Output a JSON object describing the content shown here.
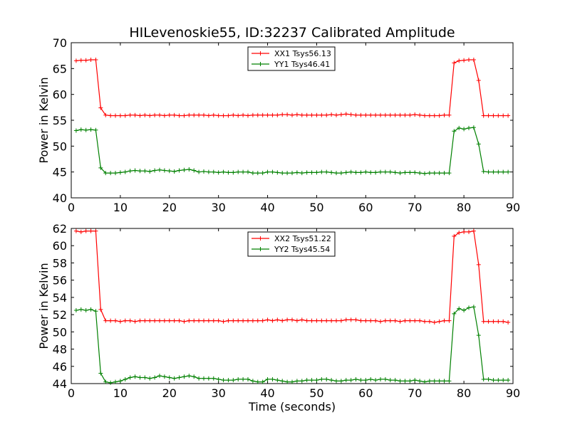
{
  "chart_data": [
    {
      "type": "line",
      "title": "HILevenoskie55, ID:32237 Calibrated Amplitude",
      "xlabel": "",
      "ylabel": "Power in Kelvin",
      "xlim": [
        0,
        90
      ],
      "ylim": [
        40,
        70
      ],
      "xticks": [
        0,
        10,
        20,
        30,
        40,
        50,
        60,
        70,
        80,
        90
      ],
      "yticks": [
        40,
        45,
        50,
        55,
        60,
        65,
        70
      ],
      "legend_position": "top-center",
      "x": [
        1,
        2,
        3,
        4,
        5,
        6,
        7,
        8,
        9,
        10,
        11,
        12,
        13,
        14,
        15,
        16,
        17,
        18,
        19,
        20,
        21,
        22,
        23,
        24,
        25,
        26,
        27,
        28,
        29,
        30,
        31,
        32,
        33,
        34,
        35,
        36,
        37,
        38,
        39,
        40,
        41,
        42,
        43,
        44,
        45,
        46,
        47,
        48,
        49,
        50,
        51,
        52,
        53,
        54,
        55,
        56,
        57,
        58,
        59,
        60,
        61,
        62,
        63,
        64,
        65,
        66,
        67,
        68,
        69,
        70,
        71,
        72,
        73,
        74,
        75,
        76,
        77,
        78,
        79,
        80,
        81,
        82,
        83,
        84,
        85,
        86,
        87,
        88,
        89
      ],
      "series": [
        {
          "name": "XX1 Tsys56.13",
          "color": "#ff0000",
          "values": [
            66.5,
            66.6,
            66.6,
            66.7,
            66.7,
            57.4,
            56.0,
            55.9,
            55.9,
            55.9,
            55.9,
            56.0,
            56.0,
            55.9,
            56.0,
            55.9,
            56.0,
            56.0,
            55.9,
            56.0,
            56.0,
            55.9,
            55.9,
            56.0,
            56.0,
            56.0,
            56.0,
            55.9,
            56.0,
            55.9,
            55.9,
            55.9,
            56.0,
            55.9,
            56.0,
            55.9,
            56.0,
            56.0,
            56.0,
            56.0,
            56.0,
            56.0,
            56.1,
            56.1,
            56.0,
            56.1,
            56.0,
            56.0,
            56.0,
            56.0,
            56.0,
            56.0,
            56.1,
            56.0,
            56.1,
            56.2,
            56.1,
            56.0,
            56.0,
            56.0,
            56.0,
            56.0,
            56.0,
            56.0,
            56.0,
            56.0,
            56.0,
            56.0,
            56.0,
            56.1,
            56.0,
            55.9,
            55.9,
            55.9,
            55.9,
            56.0,
            56.0,
            66.1,
            66.5,
            66.6,
            66.7,
            66.7,
            62.7,
            55.9,
            55.9,
            55.9,
            55.9,
            55.9,
            55.9
          ]
        },
        {
          "name": "YY1 Tsys46.41",
          "color": "#008000",
          "values": [
            53.0,
            53.2,
            53.1,
            53.2,
            53.1,
            45.8,
            44.8,
            44.8,
            44.8,
            44.9,
            45.0,
            45.2,
            45.3,
            45.2,
            45.2,
            45.1,
            45.3,
            45.4,
            45.3,
            45.2,
            45.1,
            45.3,
            45.4,
            45.5,
            45.3,
            45.0,
            45.1,
            45.0,
            45.0,
            44.9,
            45.0,
            44.9,
            44.9,
            45.0,
            45.0,
            45.0,
            44.8,
            44.8,
            44.8,
            45.0,
            45.0,
            44.9,
            44.8,
            44.8,
            44.8,
            44.9,
            44.8,
            44.9,
            44.9,
            44.9,
            45.0,
            45.0,
            44.9,
            44.8,
            44.8,
            44.9,
            45.0,
            44.9,
            44.9,
            45.0,
            44.9,
            44.9,
            45.0,
            45.0,
            45.0,
            44.9,
            44.8,
            44.9,
            44.9,
            44.9,
            44.8,
            44.7,
            44.8,
            44.8,
            44.8,
            44.8,
            44.8,
            52.9,
            53.5,
            53.3,
            53.5,
            53.6,
            50.4,
            45.1,
            45.0,
            45.0,
            45.0,
            45.0,
            45.0
          ]
        }
      ]
    },
    {
      "type": "line",
      "title": "",
      "xlabel": "Time (seconds)",
      "ylabel": "Power in Kelvin",
      "xlim": [
        0,
        90
      ],
      "ylim": [
        44,
        62
      ],
      "xticks": [
        0,
        10,
        20,
        30,
        40,
        50,
        60,
        70,
        80,
        90
      ],
      "yticks": [
        44,
        46,
        48,
        50,
        52,
        54,
        56,
        58,
        60,
        62
      ],
      "legend_position": "top-center",
      "x": [
        1,
        2,
        3,
        4,
        5,
        6,
        7,
        8,
        9,
        10,
        11,
        12,
        13,
        14,
        15,
        16,
        17,
        18,
        19,
        20,
        21,
        22,
        23,
        24,
        25,
        26,
        27,
        28,
        29,
        30,
        31,
        32,
        33,
        34,
        35,
        36,
        37,
        38,
        39,
        40,
        41,
        42,
        43,
        44,
        45,
        46,
        47,
        48,
        49,
        50,
        51,
        52,
        53,
        54,
        55,
        56,
        57,
        58,
        59,
        60,
        61,
        62,
        63,
        64,
        65,
        66,
        67,
        68,
        69,
        70,
        71,
        72,
        73,
        74,
        75,
        76,
        77,
        78,
        79,
        80,
        81,
        82,
        83,
        84,
        85,
        86,
        87,
        88,
        89
      ],
      "series": [
        {
          "name": "XX2 Tsys51.22",
          "color": "#ff0000",
          "values": [
            61.7,
            61.6,
            61.7,
            61.7,
            61.7,
            52.6,
            51.3,
            51.3,
            51.3,
            51.2,
            51.3,
            51.3,
            51.2,
            51.3,
            51.3,
            51.3,
            51.3,
            51.3,
            51.3,
            51.3,
            51.3,
            51.3,
            51.2,
            51.3,
            51.3,
            51.3,
            51.3,
            51.3,
            51.3,
            51.3,
            51.2,
            51.3,
            51.3,
            51.3,
            51.3,
            51.3,
            51.3,
            51.3,
            51.3,
            51.4,
            51.3,
            51.4,
            51.3,
            51.4,
            51.4,
            51.3,
            51.4,
            51.3,
            51.3,
            51.3,
            51.3,
            51.3,
            51.3,
            51.3,
            51.3,
            51.4,
            51.4,
            51.4,
            51.3,
            51.3,
            51.3,
            51.3,
            51.2,
            51.3,
            51.3,
            51.3,
            51.2,
            51.3,
            51.3,
            51.3,
            51.3,
            51.2,
            51.2,
            51.1,
            51.2,
            51.3,
            51.3,
            61.1,
            61.5,
            61.6,
            61.6,
            61.7,
            57.8,
            51.2,
            51.2,
            51.2,
            51.2,
            51.2,
            51.1
          ]
        },
        {
          "name": "YY2 Tsys45.54",
          "color": "#008000",
          "values": [
            52.5,
            52.6,
            52.5,
            52.6,
            52.4,
            45.2,
            44.2,
            44.1,
            44.2,
            44.3,
            44.5,
            44.7,
            44.8,
            44.7,
            44.7,
            44.6,
            44.7,
            44.9,
            44.8,
            44.7,
            44.6,
            44.7,
            44.8,
            44.9,
            44.8,
            44.6,
            44.6,
            44.6,
            44.6,
            44.5,
            44.4,
            44.4,
            44.4,
            44.5,
            44.5,
            44.5,
            44.3,
            44.2,
            44.2,
            44.5,
            44.5,
            44.4,
            44.3,
            44.2,
            44.2,
            44.3,
            44.3,
            44.4,
            44.4,
            44.4,
            44.5,
            44.5,
            44.4,
            44.3,
            44.3,
            44.4,
            44.4,
            44.5,
            44.4,
            44.4,
            44.5,
            44.4,
            44.5,
            44.5,
            44.4,
            44.4,
            44.3,
            44.3,
            44.3,
            44.4,
            44.3,
            44.2,
            44.3,
            44.3,
            44.3,
            44.3,
            44.3,
            52.1,
            52.7,
            52.5,
            52.8,
            52.9,
            49.6,
            44.5,
            44.5,
            44.4,
            44.4,
            44.4,
            44.4
          ]
        }
      ]
    }
  ]
}
